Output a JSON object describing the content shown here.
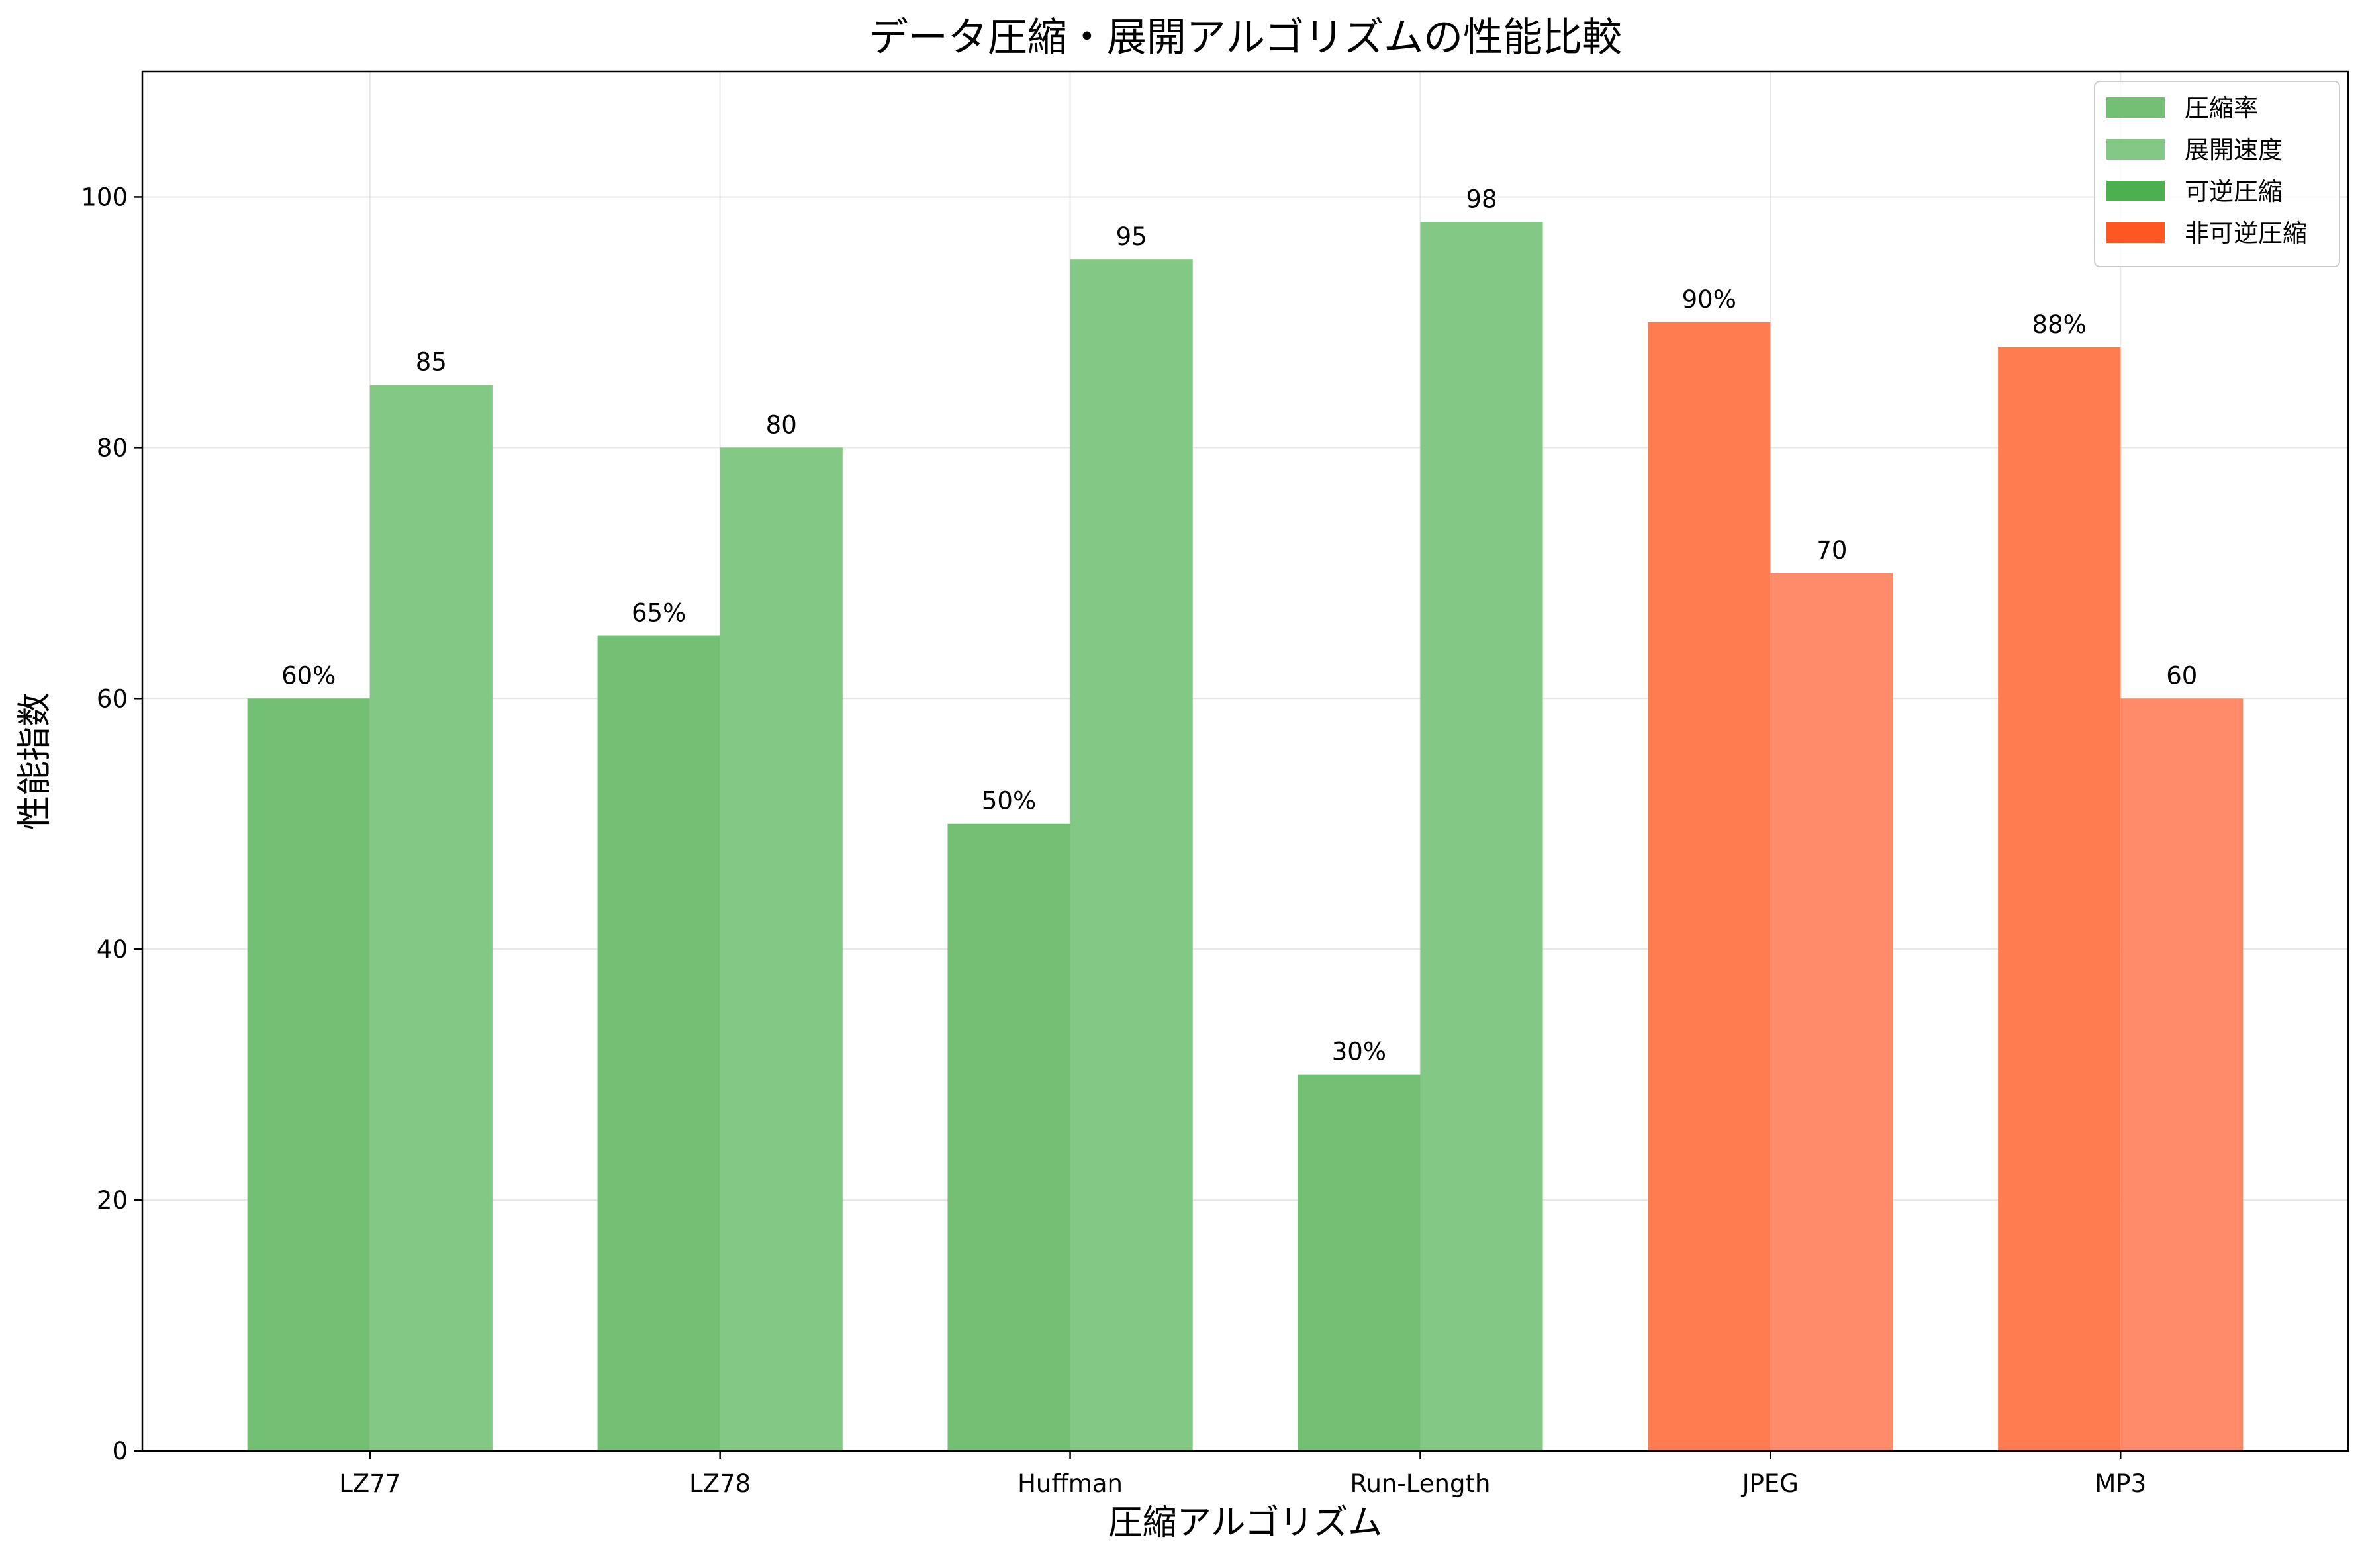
{
  "chart_data": {
    "type": "bar",
    "title": "データ圧縮・展開アルゴリズムの性能比較",
    "xlabel": "圧縮アルゴリズム",
    "ylabel": "性能指数",
    "ylim": [
      0,
      110
    ],
    "yticks": [
      0,
      20,
      40,
      60,
      80,
      100
    ],
    "grid": true,
    "legend_position": "top-right",
    "categories": [
      "LZ77",
      "LZ78",
      "Huffman",
      "Run-Length",
      "JPEG",
      "MP3"
    ],
    "category_group": [
      "可逆圧縮",
      "可逆圧縮",
      "可逆圧縮",
      "可逆圧縮",
      "非可逆圧縮",
      "非可逆圧縮"
    ],
    "series": [
      {
        "name": "圧縮率",
        "values": [
          60,
          65,
          50,
          30,
          90,
          88
        ],
        "value_labels": [
          "60%",
          "65%",
          "50%",
          "30%",
          "90%",
          "88%"
        ]
      },
      {
        "name": "展開速度",
        "values": [
          85,
          80,
          95,
          98,
          70,
          60
        ],
        "value_labels": [
          "85",
          "80",
          "95",
          "98",
          "70",
          "60"
        ]
      }
    ],
    "colors": {
      "lossless_compression": "#73bf73",
      "lossless_speed": "#84c886",
      "lossy_compression": "#ff7b50",
      "lossy_speed": "#ff8b6a",
      "legend_lossless": "#4caf50",
      "legend_lossy": "#ff5722"
    },
    "legend": [
      {
        "label": "圧縮率",
        "color": "#73bf73"
      },
      {
        "label": "展開速度",
        "color": "#84c886"
      },
      {
        "label": "可逆圧縮",
        "color": "#4caf50"
      },
      {
        "label": "非可逆圧縮",
        "color": "#ff5722"
      }
    ]
  }
}
